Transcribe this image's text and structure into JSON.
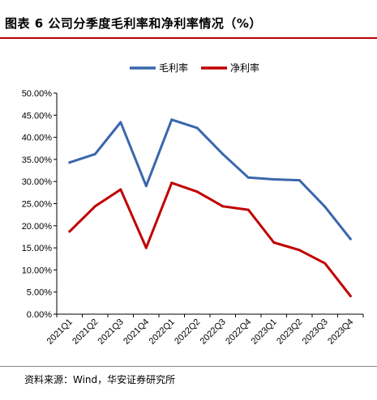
{
  "title": "图表 6 公司分季度毛利率和净利率情况（%）",
  "source": "资料来源：Wind，华安证券研究所",
  "chart_data": {
    "type": "line",
    "categories": [
      "2021Q1",
      "2021Q2",
      "2021Q3",
      "2021Q4",
      "2022Q1",
      "2022Q2",
      "2022Q3",
      "2022Q4",
      "2023Q1",
      "2023Q2",
      "2023Q3",
      "2023Q4"
    ],
    "series": [
      {
        "name": "毛利率",
        "color": "#3a66ad",
        "values": [
          34.3,
          36.2,
          43.4,
          29.0,
          44.0,
          42.1,
          36.2,
          30.9,
          30.5,
          30.3,
          24.3,
          17.0
        ]
      },
      {
        "name": "净利率",
        "color": "#c00000",
        "values": [
          18.7,
          24.4,
          28.2,
          15.0,
          29.7,
          27.7,
          24.4,
          23.6,
          16.2,
          14.5,
          11.5,
          4.1
        ]
      }
    ],
    "ylim": [
      0,
      50
    ],
    "yticks": [
      "0.00%",
      "5.00%",
      "10.00%",
      "15.00%",
      "20.00%",
      "25.00%",
      "30.00%",
      "35.00%",
      "40.00%",
      "45.00%",
      "50.00%"
    ],
    "legend_position": "top-center",
    "grid": false
  }
}
